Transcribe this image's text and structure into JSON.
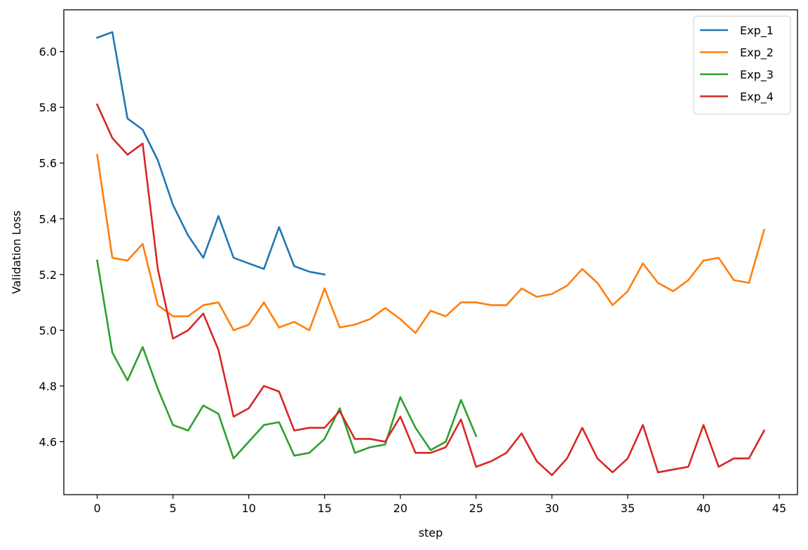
{
  "chart_data": {
    "type": "line",
    "xlabel": "step",
    "ylabel": "Validation Loss",
    "xlim": [
      -2.2,
      46.2
    ],
    "ylim": [
      4.41,
      6.15
    ],
    "x_ticks": [
      0,
      5,
      10,
      15,
      20,
      25,
      30,
      35,
      40,
      45
    ],
    "y_ticks": [
      4.6,
      4.8,
      5.0,
      5.2,
      5.4,
      5.6,
      5.8,
      6.0
    ],
    "grid": false,
    "legend_position": "top-right",
    "series": [
      {
        "name": "Exp_1",
        "color": "#1f77b4",
        "x": [
          0,
          1,
          2,
          3,
          4,
          5,
          6,
          7,
          8,
          9,
          10,
          11,
          12,
          13,
          14,
          15
        ],
        "values": [
          6.05,
          6.07,
          5.76,
          5.72,
          5.61,
          5.45,
          5.34,
          5.26,
          5.41,
          5.26,
          5.24,
          5.22,
          5.37,
          5.23,
          5.21,
          5.2
        ]
      },
      {
        "name": "Exp_2",
        "color": "#ff7f0e",
        "x": [
          0,
          1,
          2,
          3,
          4,
          5,
          6,
          7,
          8,
          9,
          10,
          11,
          12,
          13,
          14,
          15,
          16,
          17,
          18,
          19,
          20,
          21,
          22,
          23,
          24,
          25,
          26,
          27,
          28,
          29,
          30,
          31,
          32,
          33,
          34,
          35,
          36,
          37,
          38,
          39,
          40,
          41,
          42,
          43,
          44
        ],
        "values": [
          5.63,
          5.26,
          5.25,
          5.31,
          5.09,
          5.05,
          5.05,
          5.09,
          5.1,
          5.0,
          5.02,
          5.1,
          5.01,
          5.03,
          5.0,
          5.15,
          5.01,
          5.02,
          5.04,
          5.08,
          5.04,
          4.99,
          5.07,
          5.05,
          5.1,
          5.1,
          5.09,
          5.09,
          5.15,
          5.12,
          5.13,
          5.16,
          5.22,
          5.17,
          5.09,
          5.14,
          5.24,
          5.17,
          5.14,
          5.18,
          5.25,
          5.26,
          5.18,
          5.17,
          5.36
        ]
      },
      {
        "name": "Exp_3",
        "color": "#2ca02c",
        "x": [
          0,
          1,
          2,
          3,
          4,
          5,
          6,
          7,
          8,
          9,
          10,
          11,
          12,
          13,
          14,
          15,
          16,
          17,
          18,
          19,
          20,
          21,
          22,
          23,
          24,
          25
        ],
        "values": [
          5.25,
          4.92,
          4.82,
          4.94,
          4.79,
          4.66,
          4.64,
          4.73,
          4.7,
          4.54,
          4.6,
          4.66,
          4.67,
          4.55,
          4.56,
          4.61,
          4.72,
          4.56,
          4.58,
          4.59,
          4.76,
          4.65,
          4.57,
          4.6,
          4.75,
          4.62
        ]
      },
      {
        "name": "Exp_4",
        "color": "#d62728",
        "x": [
          0,
          1,
          2,
          3,
          4,
          5,
          6,
          7,
          8,
          9,
          10,
          11,
          12,
          13,
          14,
          15,
          16,
          17,
          18,
          19,
          20,
          21,
          22,
          23,
          24,
          25,
          26,
          27,
          28,
          29,
          30,
          31,
          32,
          33,
          34,
          35,
          36,
          37,
          38,
          39,
          40,
          41,
          42,
          43,
          44
        ],
        "values": [
          5.81,
          5.69,
          5.63,
          5.67,
          5.22,
          4.97,
          5.0,
          5.06,
          4.93,
          4.69,
          4.72,
          4.8,
          4.78,
          4.64,
          4.65,
          4.65,
          4.71,
          4.61,
          4.61,
          4.6,
          4.69,
          4.56,
          4.56,
          4.58,
          4.68,
          4.51,
          4.53,
          4.56,
          4.63,
          4.53,
          4.48,
          4.54,
          4.65,
          4.54,
          4.49,
          4.54,
          4.66,
          4.49,
          4.5,
          4.51,
          4.66,
          4.51,
          4.54,
          4.54,
          4.64
        ]
      }
    ]
  }
}
